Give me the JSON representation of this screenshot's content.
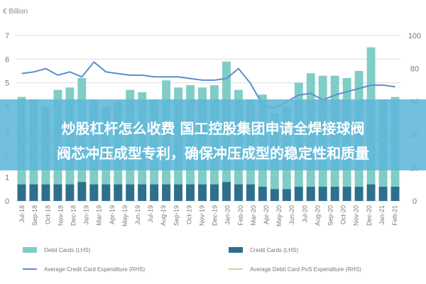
{
  "banner": {
    "line1": "炒股杠杆怎么收费 国工控股集团申请全焊接球阀",
    "line2": "阀芯冲压成型专利，确保冲压成型的稳定性和质量",
    "color": "#5fb7d8"
  },
  "chart_data": {
    "type": "bar",
    "y_unit_left": "€ Billion",
    "ylim_left": [
      0,
      7
    ],
    "yticks_left": [
      0,
      1,
      2,
      3,
      4,
      5,
      6,
      7
    ],
    "ylim_right": [
      0,
      100
    ],
    "yticks_right": [
      0,
      20,
      40,
      60,
      80,
      100
    ],
    "categories": [
      "Jul-18",
      "Aug-18",
      "Sep-18",
      "Oct-18",
      "Nov-18",
      "Dec-18",
      "Jan-19",
      "Feb-19",
      "Mar-19",
      "Apr-19",
      "May-19",
      "Jun-19",
      "Jul-19",
      "Aug-19",
      "Sep-19",
      "Oct-19",
      "Nov-19",
      "Dec-19",
      "Jan-20",
      "Feb-20",
      "Mar-20",
      "Apr-20",
      "May-20",
      "Jun-20",
      "Jul-20",
      "Aug-20",
      "Sep-20",
      "Oct-20",
      "Nov-20",
      "Dec-20",
      "Jan-21",
      "Feb-21"
    ],
    "tick_labels": [
      "Jul-18",
      "Sep-18",
      "Oct-18",
      "Nov-18",
      "Dec-18",
      "Jan-19",
      "Mar-19",
      "Apr-19",
      "May-19",
      "Jun-19",
      "Jul-19",
      "Aug-19",
      "Sep-19",
      "Oct-19",
      "Nov-19",
      "Dec-19",
      "Jan-20",
      "Feb-20",
      "Mar-20",
      "Apr-20",
      "May-20",
      "Jun-20",
      "Jul-20",
      "Aug-20",
      "Sep-20",
      "Oct-20",
      "Nov-20",
      "Dec-20",
      "Jan-21",
      "Feb-21"
    ],
    "series": [
      {
        "name": "Debit Cards (LHS)",
        "axis": "left",
        "kind": "bar",
        "color": "#7fcdc6",
        "values": [
          4.4,
          4.3,
          4.0,
          4.7,
          4.8,
          5.2,
          4.3,
          4.0,
          4.2,
          4.7,
          4.6,
          4.3,
          5.1,
          4.8,
          4.9,
          4.8,
          4.9,
          5.9,
          4.7,
          4.3,
          4.5,
          3.7,
          4.0,
          5.0,
          5.4,
          5.3,
          5.3,
          5.2,
          5.5,
          6.5,
          4.3,
          4.4
        ]
      },
      {
        "name": "Credit Cards (LHS)",
        "axis": "left",
        "kind": "bar",
        "color": "#2f6f8c",
        "values": [
          0.7,
          0.7,
          0.7,
          0.7,
          0.7,
          0.8,
          0.7,
          0.7,
          0.7,
          0.7,
          0.7,
          0.7,
          0.7,
          0.7,
          0.7,
          0.7,
          0.7,
          0.8,
          0.7,
          0.7,
          0.6,
          0.5,
          0.5,
          0.6,
          0.6,
          0.6,
          0.6,
          0.6,
          0.6,
          0.7,
          0.6,
          0.6
        ]
      },
      {
        "name": "Average Credit Card Expenditure (RHS)",
        "axis": "right",
        "kind": "line",
        "color": "#5b8fd0",
        "values": [
          77,
          78,
          80,
          76,
          78,
          75,
          84,
          78,
          77,
          76,
          76,
          75,
          75,
          75,
          74,
          73,
          73,
          74,
          80,
          71,
          58,
          56,
          60,
          64,
          65,
          61,
          64,
          66,
          68,
          70,
          70,
          69
        ]
      },
      {
        "name": "Average Debit Card PoS Expenditure (RHS)",
        "axis": "right",
        "kind": "line",
        "color": "#c9d98e",
        "values": [
          37,
          37,
          37,
          37,
          37,
          37,
          37,
          37,
          37,
          37,
          37,
          37,
          37,
          37,
          37,
          37,
          37,
          37,
          37,
          37,
          37,
          37,
          37,
          37,
          37,
          37,
          37,
          37,
          37,
          37,
          37,
          37
        ]
      }
    ],
    "grid": true,
    "legend_position": "bottom"
  }
}
